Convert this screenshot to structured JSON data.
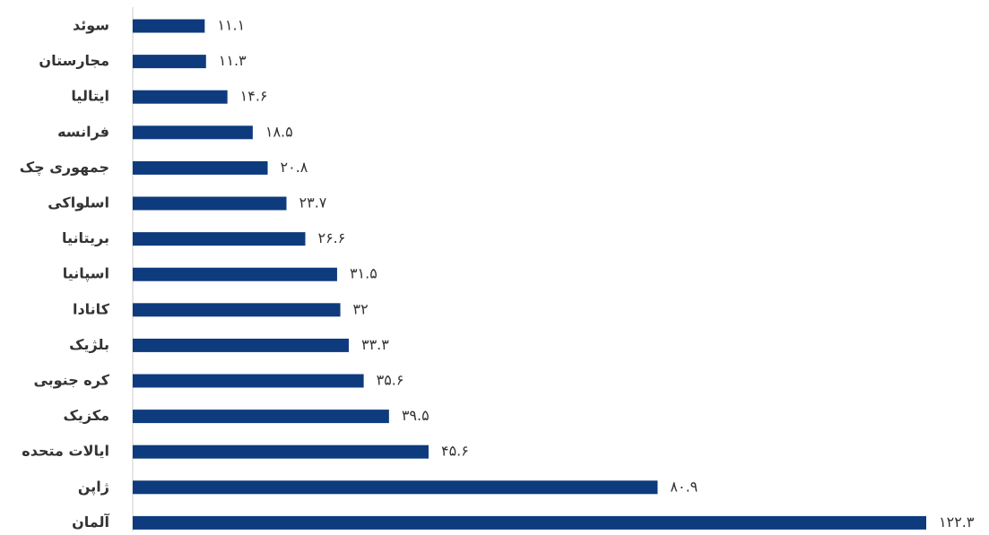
{
  "chart_data": {
    "type": "bar",
    "orientation": "horizontal",
    "color": "#0d3b7e",
    "categories": [
      "سوئد",
      "مجارستان",
      "ایتالیا",
      "فرانسه",
      "جمهوری چک",
      "اسلواکی",
      "بریتانیا",
      "اسپانیا",
      "کانادا",
      "بلژیک",
      "کره جنوبی",
      "مکزیک",
      "ایالات متحده",
      "ژاپن",
      "آلمان"
    ],
    "values": [
      11.1,
      11.3,
      14.6,
      18.5,
      20.8,
      23.7,
      26.6,
      31.5,
      32,
      33.3,
      35.6,
      39.5,
      45.6,
      80.9,
      122.3
    ],
    "value_labels": [
      "۱۱.۱",
      "۱۱.۳",
      "۱۴.۶",
      "۱۸.۵",
      "۲۰.۸",
      "۲۳.۷",
      "۲۶.۶",
      "۳۱.۵",
      "۳۲",
      "۳۳.۳",
      "۳۵.۶",
      "۳۹.۵",
      "۴۵.۶",
      "۸۰.۹",
      "۱۲۲.۳"
    ]
  }
}
